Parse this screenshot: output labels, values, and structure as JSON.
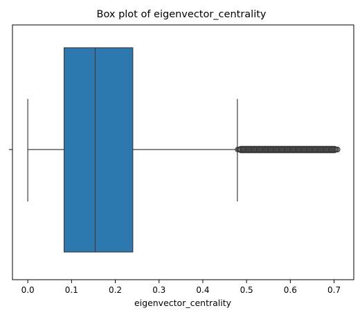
{
  "chart_data": {
    "type": "box",
    "title": "Box plot of eigenvector_centrality",
    "xlabel": "eigenvector_centrality",
    "ylabel": "",
    "orientation": "horizontal",
    "xlim": [
      -0.035,
      0.745
    ],
    "xticks": [
      0.0,
      0.1,
      0.2,
      0.3,
      0.4,
      0.5,
      0.6,
      0.7
    ],
    "xtick_labels": [
      "0.0",
      "0.1",
      "0.2",
      "0.3",
      "0.4",
      "0.5",
      "0.6",
      "0.7"
    ],
    "grid": false,
    "box": {
      "whisker_low": 0.0,
      "q1": 0.083,
      "median": 0.154,
      "q3": 0.24,
      "whisker_high": 0.479,
      "color": "#2e78b0",
      "edge_color": "#3d3d3d"
    },
    "outliers": {
      "min": 0.48,
      "max": 0.708,
      "color": "#3d3d3d"
    }
  }
}
